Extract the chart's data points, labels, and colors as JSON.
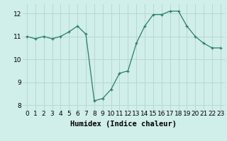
{
  "x": [
    0,
    1,
    2,
    3,
    4,
    5,
    6,
    7,
    8,
    9,
    10,
    11,
    12,
    13,
    14,
    15,
    16,
    17,
    18,
    19,
    20,
    21,
    22,
    23
  ],
  "y": [
    11.0,
    10.9,
    11.0,
    10.9,
    11.0,
    11.2,
    11.45,
    11.1,
    8.2,
    8.3,
    8.7,
    9.4,
    9.5,
    10.7,
    11.45,
    11.95,
    11.95,
    12.1,
    12.1,
    11.45,
    11.0,
    10.7,
    10.5,
    10.5
  ],
  "xlabel": "Humidex (Indice chaleur)",
  "line_color": "#2a7d6b",
  "marker": "+",
  "bg_color": "#d0eeea",
  "grid_color": "#b8d8d4",
  "ylim": [
    7.8,
    12.4
  ],
  "xlim": [
    -0.5,
    23.5
  ],
  "yticks": [
    8,
    9,
    10,
    11,
    12
  ],
  "xticks": [
    0,
    1,
    2,
    3,
    4,
    5,
    6,
    7,
    8,
    9,
    10,
    11,
    12,
    13,
    14,
    15,
    16,
    17,
    18,
    19,
    20,
    21,
    22,
    23
  ],
  "tick_fontsize": 6.5,
  "xlabel_fontsize": 7.5
}
